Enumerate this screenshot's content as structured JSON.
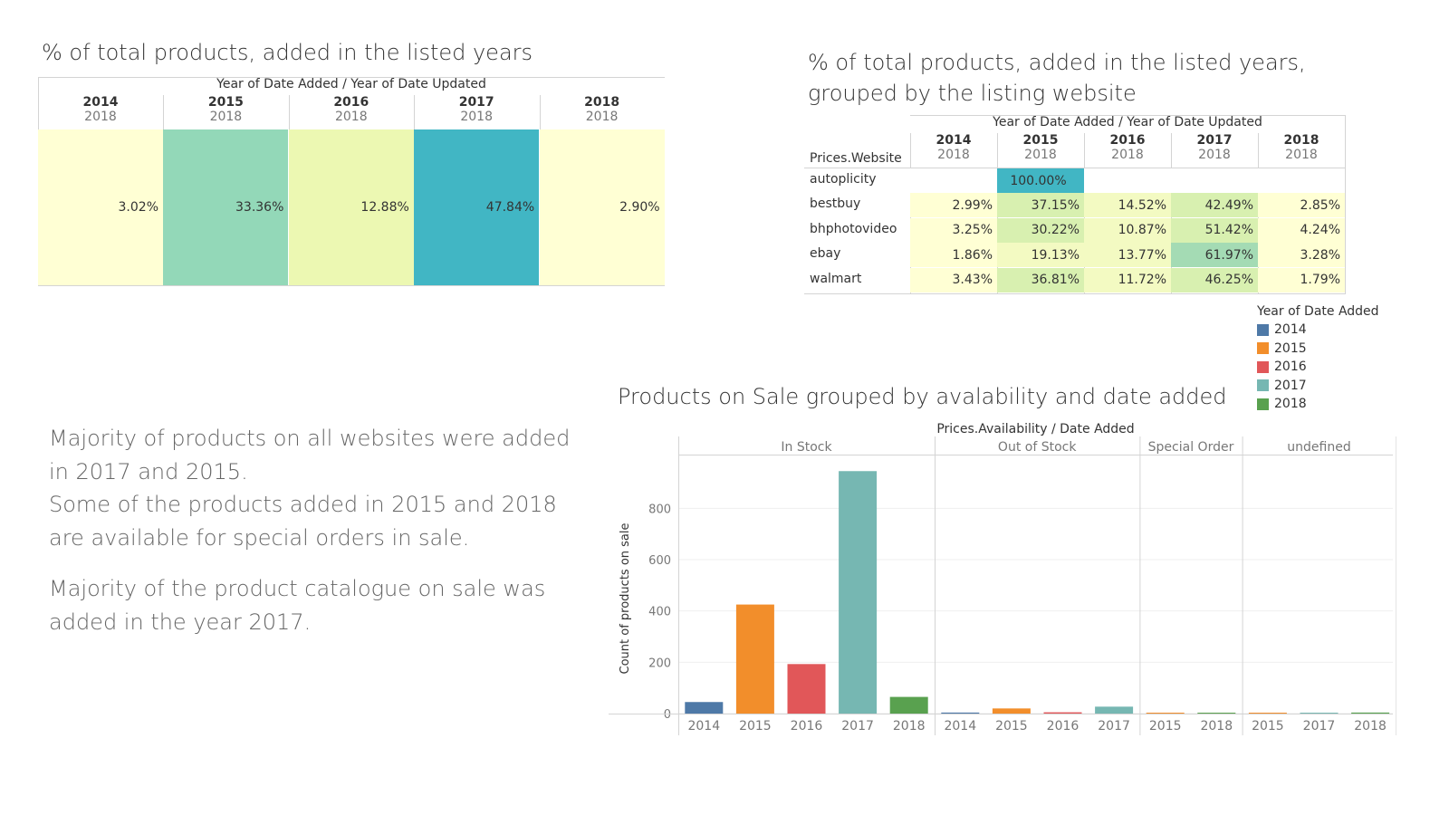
{
  "colors": {
    "2014": "#4e79a7",
    "2015": "#f28e2b",
    "2016": "#e15759",
    "2017": "#76b7b2",
    "2018": "#59a14f",
    "heat_low": "#ffffd4",
    "heat_mid": "#edf8b1",
    "heat_green": "#c7e9b4",
    "heat_teal_mid": "#94d7b9",
    "heat_high": "#41b6c4"
  },
  "table1": {
    "title": "% of total products, added in the listed years",
    "header": "Year of Date Added  /  Year of Date Updated",
    "columns": [
      {
        "added": "2014",
        "updated": "2018",
        "value": "3.02%",
        "num": 3.02
      },
      {
        "added": "2015",
        "updated": "2018",
        "value": "33.36%",
        "num": 33.36
      },
      {
        "added": "2016",
        "updated": "2018",
        "value": "12.88%",
        "num": 12.88
      },
      {
        "added": "2017",
        "updated": "2018",
        "value": "47.84%",
        "num": 47.84
      },
      {
        "added": "2018",
        "updated": "2018",
        "value": "2.90%",
        "num": 2.9
      }
    ]
  },
  "table2": {
    "title": "% of total products, added in the listed years, grouped by the listing website",
    "header": "Year of Date Added  /  Year of Date Updated",
    "row_header": "Prices.Website",
    "columns": [
      {
        "added": "2014",
        "updated": "2018"
      },
      {
        "added": "2015",
        "updated": "2018"
      },
      {
        "added": "2016",
        "updated": "2018"
      },
      {
        "added": "2017",
        "updated": "2018"
      },
      {
        "added": "2018",
        "updated": "2018"
      }
    ],
    "rows": [
      {
        "label": "autoplicity",
        "values": [
          "",
          "100.00%",
          "",
          "",
          ""
        ],
        "nums": [
          null,
          100,
          null,
          null,
          null
        ]
      },
      {
        "label": "bestbuy",
        "values": [
          "2.99%",
          "37.15%",
          "14.52%",
          "42.49%",
          "2.85%"
        ],
        "nums": [
          2.99,
          37.15,
          14.52,
          42.49,
          2.85
        ]
      },
      {
        "label": "bhphotovideo",
        "values": [
          "3.25%",
          "30.22%",
          "10.87%",
          "51.42%",
          "4.24%"
        ],
        "nums": [
          3.25,
          30.22,
          10.87,
          51.42,
          4.24
        ]
      },
      {
        "label": "ebay",
        "values": [
          "1.86%",
          "19.13%",
          "13.77%",
          "61.97%",
          "3.28%"
        ],
        "nums": [
          1.86,
          19.13,
          13.77,
          61.97,
          3.28
        ]
      },
      {
        "label": "walmart",
        "values": [
          "3.43%",
          "36.81%",
          "11.72%",
          "46.25%",
          "1.79%"
        ],
        "nums": [
          3.43,
          36.81,
          11.72,
          46.25,
          1.79
        ]
      }
    ]
  },
  "legend": {
    "title": "Year of Date Added",
    "items": [
      "2014",
      "2015",
      "2016",
      "2017",
      "2018"
    ]
  },
  "narrative": [
    "Majority of products on all websites were added in 2017 and 2015.\nSome of the products added in 2015 and 2018 are available for special orders in sale.",
    "Majority of the product catalogue on sale was added in the year 2017."
  ],
  "chart_data": {
    "type": "bar",
    "title": "Products on Sale grouped by avalability and date added",
    "header": "Prices.Availability  /  Date Added",
    "ylabel": "Count of products on sale",
    "ylim": [
      0,
      960
    ],
    "yticks": [
      0,
      200,
      400,
      600,
      800
    ],
    "grid": true,
    "groups": [
      {
        "name": "In Stock",
        "bars": [
          {
            "year": "2014",
            "value": 45
          },
          {
            "year": "2015",
            "value": 425
          },
          {
            "year": "2016",
            "value": 193
          },
          {
            "year": "2017",
            "value": 945
          },
          {
            "year": "2018",
            "value": 65
          }
        ]
      },
      {
        "name": "Out of Stock",
        "bars": [
          {
            "year": "2014",
            "value": 4
          },
          {
            "year": "2015",
            "value": 20
          },
          {
            "year": "2016",
            "value": 5
          },
          {
            "year": "2017",
            "value": 27
          }
        ]
      },
      {
        "name": "Special Order",
        "bars": [
          {
            "year": "2015",
            "value": 3
          },
          {
            "year": "2018",
            "value": 1
          }
        ]
      },
      {
        "name": "undefined",
        "bars": [
          {
            "year": "2015",
            "value": 1
          },
          {
            "year": "2017",
            "value": 1
          },
          {
            "year": "2018",
            "value": 4
          }
        ]
      }
    ]
  }
}
